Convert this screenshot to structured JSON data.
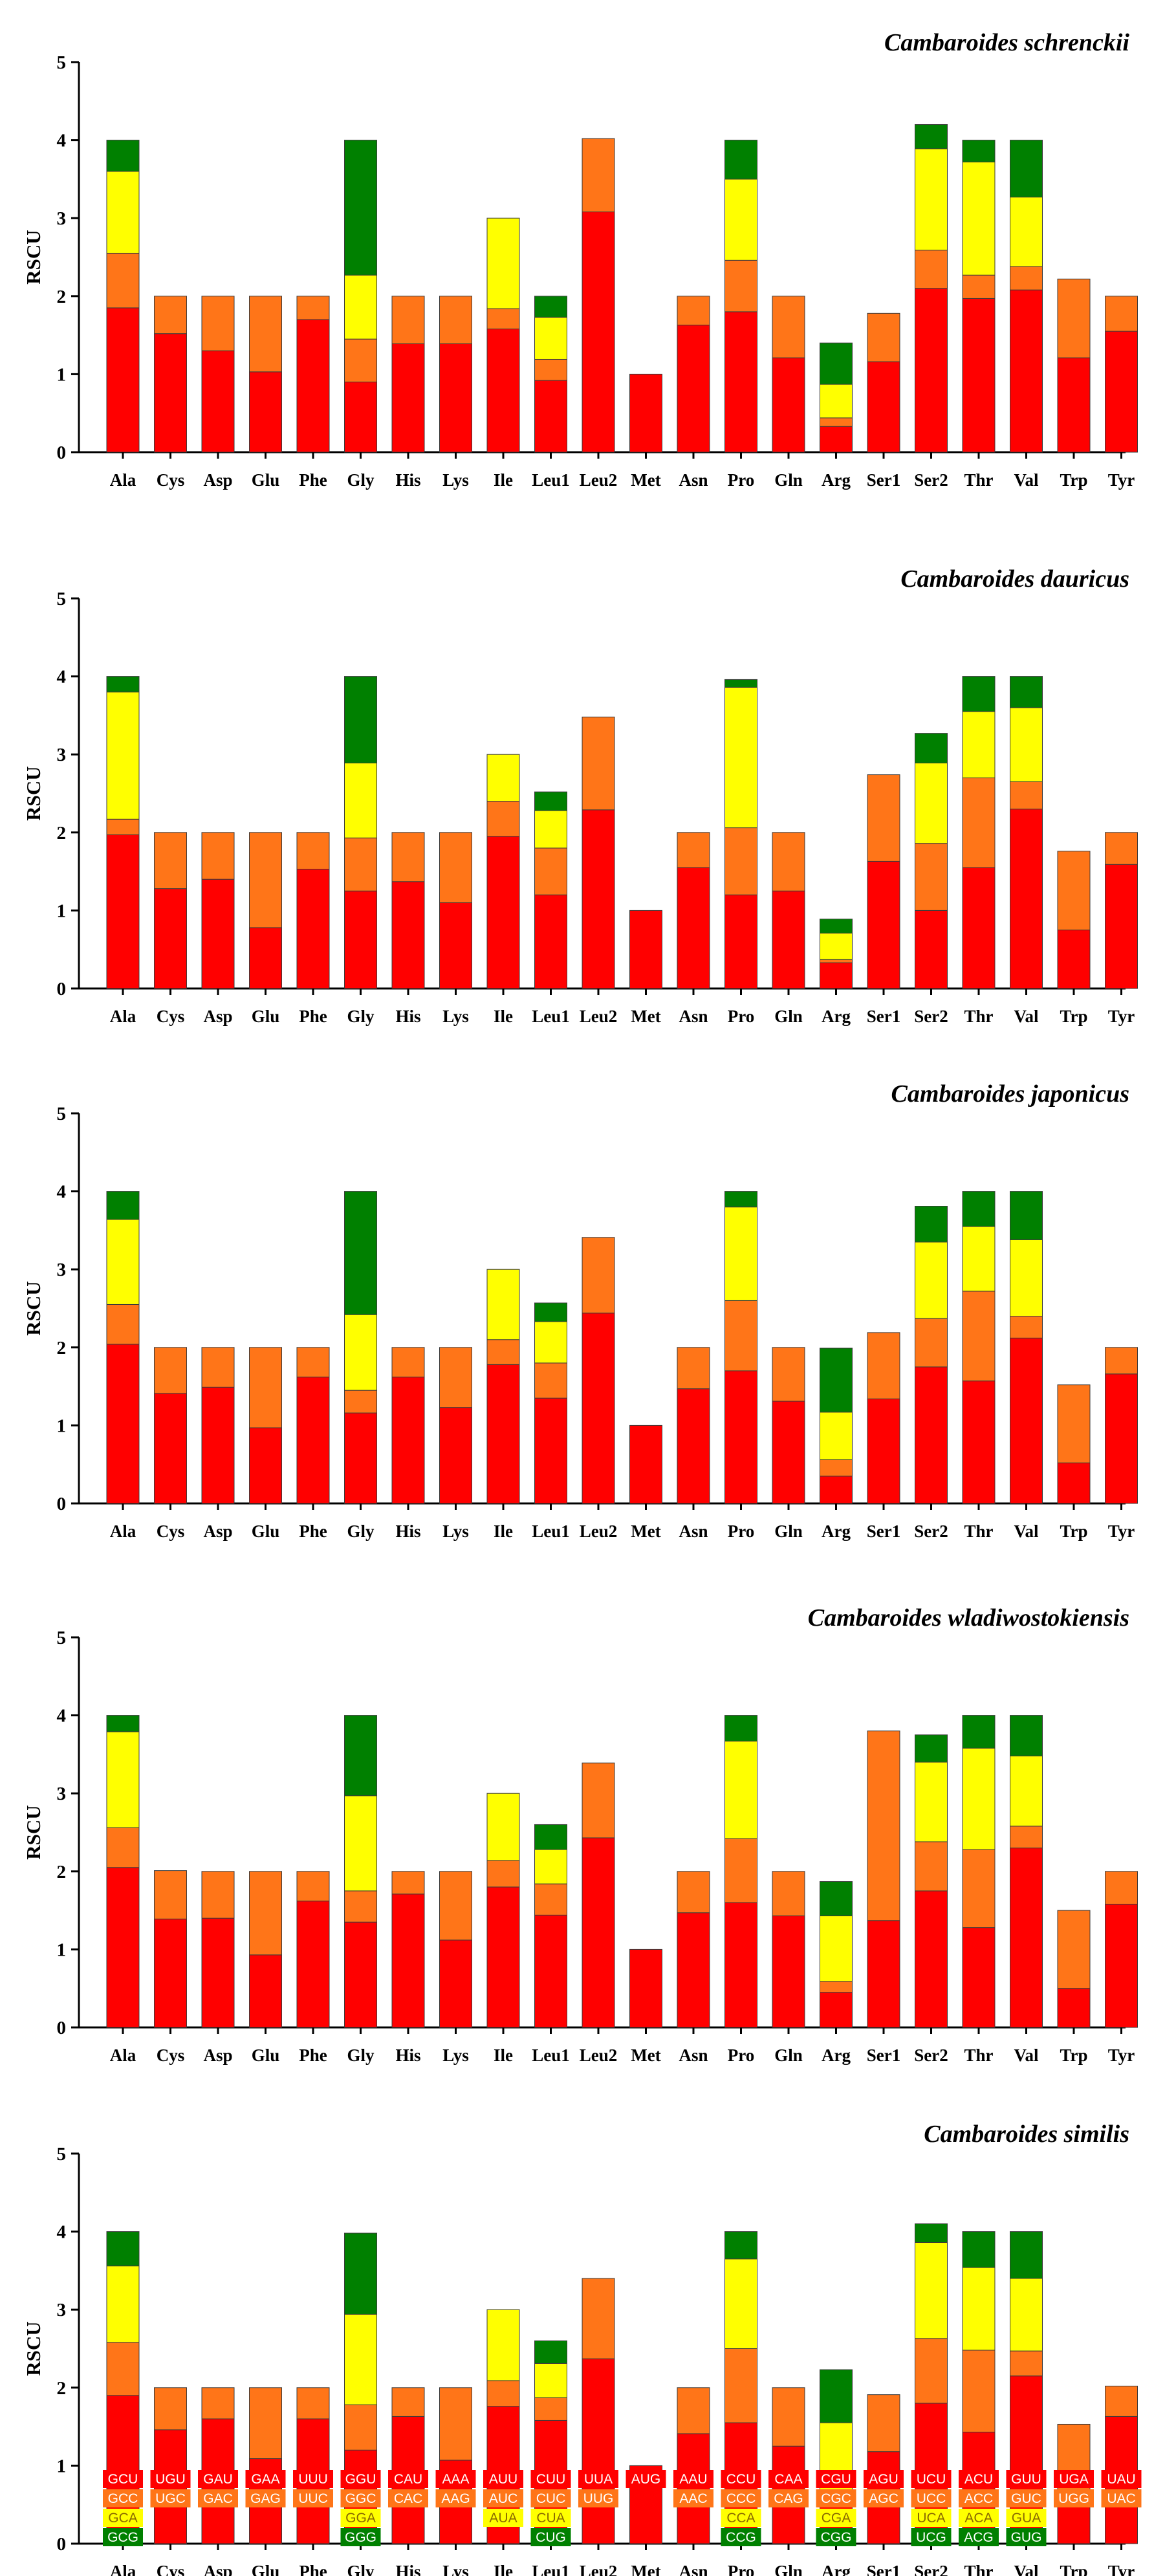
{
  "chart_data": {
    "type": "bar",
    "stacked": true,
    "ylabel": "RSCU",
    "ylim": [
      0,
      5
    ],
    "yticks": [
      "0",
      "1",
      "2",
      "3",
      "4",
      "5"
    ],
    "categories": [
      "Ala",
      "Cys",
      "Asp",
      "Glu",
      "Phe",
      "Gly",
      "His",
      "Lys",
      "Ile",
      "Leu1",
      "Leu2",
      "Met",
      "Asn",
      "Pro",
      "Gln",
      "Arg",
      "Ser1",
      "Ser2",
      "Thr",
      "Val",
      "Trp",
      "Tyr"
    ],
    "colors": [
      "#ff0000",
      "#ff7518",
      "#ffff00",
      "#008000"
    ],
    "panels": [
      {
        "title": "Cambaroides schrenckii",
        "stacks": [
          [
            1.85,
            0.7,
            1.05,
            0.4
          ],
          [
            1.52,
            0.48
          ],
          [
            1.3,
            0.7
          ],
          [
            1.03,
            0.97
          ],
          [
            1.7,
            0.3
          ],
          [
            0.9,
            0.55,
            0.82,
            1.73
          ],
          [
            1.39,
            0.61
          ],
          [
            1.39,
            0.61
          ],
          [
            1.58,
            0.26,
            1.16
          ],
          [
            0.92,
            0.27,
            0.54,
            0.27
          ],
          [
            3.08,
            0.94
          ],
          [
            1.0
          ],
          [
            1.63,
            0.37
          ],
          [
            1.8,
            0.66,
            1.04,
            0.5
          ],
          [
            1.21,
            0.79
          ],
          [
            0.33,
            0.11,
            0.43,
            0.53
          ],
          [
            1.16,
            0.62
          ],
          [
            2.1,
            0.49,
            1.3,
            0.31
          ],
          [
            1.97,
            0.3,
            1.45,
            0.28
          ],
          [
            2.08,
            0.3,
            0.89,
            0.73
          ],
          [
            1.21,
            1.01
          ],
          [
            1.55,
            0.45
          ]
        ]
      },
      {
        "title": "Cambaroides dauricus",
        "stacks": [
          [
            1.97,
            0.2,
            1.63,
            0.2
          ],
          [
            1.28,
            0.72
          ],
          [
            1.4,
            0.6
          ],
          [
            0.78,
            1.22
          ],
          [
            1.53,
            0.47
          ],
          [
            1.25,
            0.68,
            0.96,
            1.11
          ],
          [
            1.37,
            0.63
          ],
          [
            1.1,
            0.9
          ],
          [
            1.95,
            0.45,
            0.6
          ],
          [
            1.2,
            0.6,
            0.48,
            0.24
          ],
          [
            2.29,
            1.19
          ],
          [
            1.0
          ],
          [
            1.55,
            0.45
          ],
          [
            1.2,
            0.86,
            1.8,
            0.1
          ],
          [
            1.25,
            0.75
          ],
          [
            0.33,
            0.04,
            0.34,
            0.18
          ],
          [
            1.63,
            1.11
          ],
          [
            1.0,
            0.86,
            1.03,
            0.38
          ],
          [
            1.55,
            1.15,
            0.85,
            0.45
          ],
          [
            2.3,
            0.35,
            0.95,
            0.4
          ],
          [
            0.75,
            1.01
          ],
          [
            1.59,
            0.41
          ]
        ]
      },
      {
        "title": "Cambaroides japonicus",
        "stacks": [
          [
            2.04,
            0.51,
            1.09,
            0.36
          ],
          [
            1.41,
            0.59
          ],
          [
            1.49,
            0.51
          ],
          [
            0.97,
            1.03
          ],
          [
            1.62,
            0.38
          ],
          [
            1.16,
            0.29,
            0.97,
            1.58
          ],
          [
            1.62,
            0.38
          ],
          [
            1.23,
            0.77
          ],
          [
            1.78,
            0.32,
            0.9
          ],
          [
            1.35,
            0.45,
            0.53,
            0.24
          ],
          [
            2.44,
            0.97
          ],
          [
            1.0
          ],
          [
            1.47,
            0.53
          ],
          [
            1.7,
            0.9,
            1.2,
            0.2
          ],
          [
            1.31,
            0.69
          ],
          [
            0.35,
            0.21,
            0.61,
            0.82
          ],
          [
            1.34,
            0.85
          ],
          [
            1.75,
            0.62,
            0.98,
            0.46
          ],
          [
            1.57,
            1.15,
            0.83,
            0.45
          ],
          [
            2.12,
            0.28,
            0.98,
            0.62
          ],
          [
            0.52,
            1.0
          ],
          [
            1.66,
            0.34
          ]
        ]
      },
      {
        "title": "Cambaroides wladiwostokiensis",
        "stacks": [
          [
            2.05,
            0.51,
            1.23,
            0.21
          ],
          [
            1.39,
            0.62
          ],
          [
            1.4,
            0.6
          ],
          [
            0.93,
            1.07
          ],
          [
            1.62,
            0.38
          ],
          [
            1.35,
            0.4,
            1.22,
            1.03
          ],
          [
            1.71,
            0.29
          ],
          [
            1.12,
            0.88
          ],
          [
            1.8,
            0.34,
            0.86
          ],
          [
            1.44,
            0.4,
            0.44,
            0.32
          ],
          [
            2.43,
            0.96
          ],
          [
            1.0
          ],
          [
            1.47,
            0.53
          ],
          [
            1.6,
            0.82,
            1.25,
            0.33
          ],
          [
            1.43,
            0.57
          ],
          [
            0.45,
            0.14,
            0.84,
            0.44
          ],
          [
            1.37,
            2.43
          ],
          [
            1.75,
            0.63,
            1.02,
            0.35
          ],
          [
            1.28,
            1.0,
            1.3,
            0.42
          ],
          [
            2.3,
            0.28,
            0.9,
            0.52
          ],
          [
            0.5,
            1.0
          ],
          [
            1.58,
            0.42
          ]
        ]
      },
      {
        "title": "Cambaroides similis",
        "stacks": [
          [
            1.9,
            0.68,
            0.98,
            0.44
          ],
          [
            1.46,
            0.54
          ],
          [
            1.6,
            0.4
          ],
          [
            1.09,
            0.91
          ],
          [
            1.6,
            0.4
          ],
          [
            1.2,
            0.58,
            1.16,
            1.04
          ],
          [
            1.63,
            0.37
          ],
          [
            1.07,
            0.93
          ],
          [
            1.76,
            0.33,
            0.91
          ],
          [
            1.58,
            0.29,
            0.44,
            0.29
          ],
          [
            2.37,
            1.03
          ],
          [
            1.0
          ],
          [
            1.41,
            0.59
          ],
          [
            1.55,
            0.95,
            1.15,
            0.35
          ],
          [
            1.25,
            0.75
          ],
          [
            0.58,
            0.1,
            0.87,
            0.68
          ],
          [
            1.18,
            0.73
          ],
          [
            1.8,
            0.83,
            1.23,
            0.24
          ],
          [
            1.43,
            1.05,
            1.06,
            0.46
          ],
          [
            2.15,
            0.32,
            0.93,
            0.6
          ],
          [
            0.53,
            1.0
          ],
          [
            1.63,
            0.39
          ]
        ]
      }
    ],
    "codons": [
      [
        "GCU",
        "GCC",
        "GCA",
        "GCG"
      ],
      [
        "UGU",
        "UGC"
      ],
      [
        "GAU",
        "GAC"
      ],
      [
        "GAA",
        "GAG"
      ],
      [
        "UUU",
        "UUC"
      ],
      [
        "GGU",
        "GGC",
        "GGA",
        "GGG"
      ],
      [
        "CAU",
        "CAC"
      ],
      [
        "AAA",
        "AAG"
      ],
      [
        "AUU",
        "AUC",
        "AUA"
      ],
      [
        "CUU",
        "CUC",
        "CUA",
        "CUG"
      ],
      [
        "UUA",
        "UUG"
      ],
      [
        "AUG"
      ],
      [
        "AAU",
        "AAC"
      ],
      [
        "CCU",
        "CCC",
        "CCA",
        "CCG"
      ],
      [
        "CAA",
        "CAG"
      ],
      [
        "CGU",
        "CGC",
        "CGA",
        "CGG"
      ],
      [
        "AGU",
        "AGC"
      ],
      [
        "UCU",
        "UCC",
        "UCA",
        "UCG"
      ],
      [
        "ACU",
        "ACC",
        "ACA",
        "ACG"
      ],
      [
        "GUU",
        "GUC",
        "GUA",
        "GUG"
      ],
      [
        "UGA",
        "UGG"
      ],
      [
        "UAU",
        "UAC"
      ]
    ]
  }
}
